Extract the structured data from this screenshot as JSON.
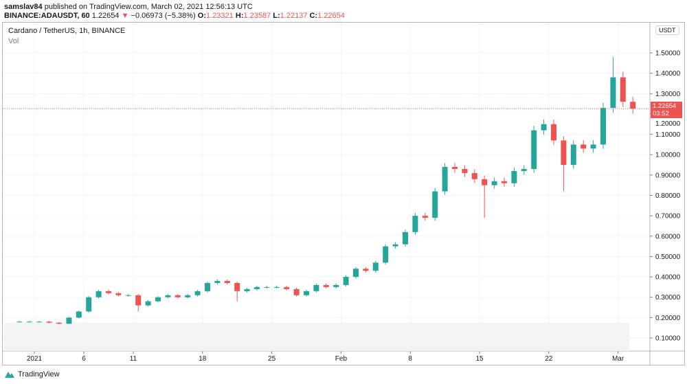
{
  "header": {
    "author": "samslav84",
    "published": "published on TradingView.com, March 02, 2021 12:56:13 UTC",
    "symbol": "BINANCE:ADAUSDT, 60",
    "last": "1.22654",
    "change": "−0.06973 (−5.38%)",
    "o_label": "O:",
    "o": "1.23321",
    "h_label": "H:",
    "h": "1.23587",
    "l_label": "L:",
    "l": "1.22137",
    "c_label": "C:",
    "c": "1.22654"
  },
  "legend": {
    "title": "Cardano / TetherUS, 1h, BINANCE",
    "vol": "Vol"
  },
  "currency": "USDT",
  "last_label": {
    "price": "1.22654",
    "countdown": "03:52"
  },
  "footer": {
    "brand": "TradingView"
  },
  "colors": {
    "up": "#26a69a",
    "down": "#ef5350",
    "grid": "#f0f3fa"
  },
  "chart_data": {
    "type": "candlestick",
    "ylim": [
      0.03,
      1.6
    ],
    "yticks": [
      "1.50000",
      "1.40000",
      "1.30000",
      "1.20000",
      "1.10000",
      "1.00000",
      "0.90000",
      "0.80000",
      "0.70000",
      "0.60000",
      "0.50000",
      "0.40000",
      "0.30000",
      "0.20000",
      "0.10000"
    ],
    "xticks": [
      {
        "label": "2021",
        "date": "2021-01-01"
      },
      {
        "label": "6",
        "date": "2021-01-06"
      },
      {
        "label": "11",
        "date": "2021-01-11"
      },
      {
        "label": "18",
        "date": "2021-01-18"
      },
      {
        "label": "25",
        "date": "2021-01-25"
      },
      {
        "label": "Feb",
        "date": "2021-02-01"
      },
      {
        "label": "8",
        "date": "2021-02-08"
      },
      {
        "label": "15",
        "date": "2021-02-15"
      },
      {
        "label": "22",
        "date": "2021-02-22"
      },
      {
        "label": "Mar",
        "date": "2021-03-01"
      }
    ],
    "last_price": 1.22654,
    "start_date": "2020-12-30",
    "daily_close": [
      0.18,
      0.18,
      0.18,
      0.175,
      0.17,
      0.2,
      0.23,
      0.3,
      0.33,
      0.32,
      0.31,
      0.31,
      0.26,
      0.28,
      0.3,
      0.31,
      0.3,
      0.31,
      0.33,
      0.37,
      0.38,
      0.37,
      0.33,
      0.34,
      0.35,
      0.35,
      0.35,
      0.34,
      0.31,
      0.33,
      0.36,
      0.35,
      0.36,
      0.4,
      0.44,
      0.43,
      0.47,
      0.55,
      0.56,
      0.62,
      0.7,
      0.69,
      0.82,
      0.94,
      0.93,
      0.91,
      0.88,
      0.85,
      0.87,
      0.86,
      0.92,
      0.93,
      1.12,
      1.15,
      1.07,
      0.95,
      1.05,
      1.03,
      1.05,
      1.23,
      1.38,
      1.26,
      1.22654
    ],
    "daily_low": {
      "2021-01-11": 0.23,
      "2021-01-21": 0.28,
      "2021-02-15": 0.69,
      "2021-02-23": 0.82
    },
    "daily_high": {
      "2021-02-28": 1.48
    }
  }
}
